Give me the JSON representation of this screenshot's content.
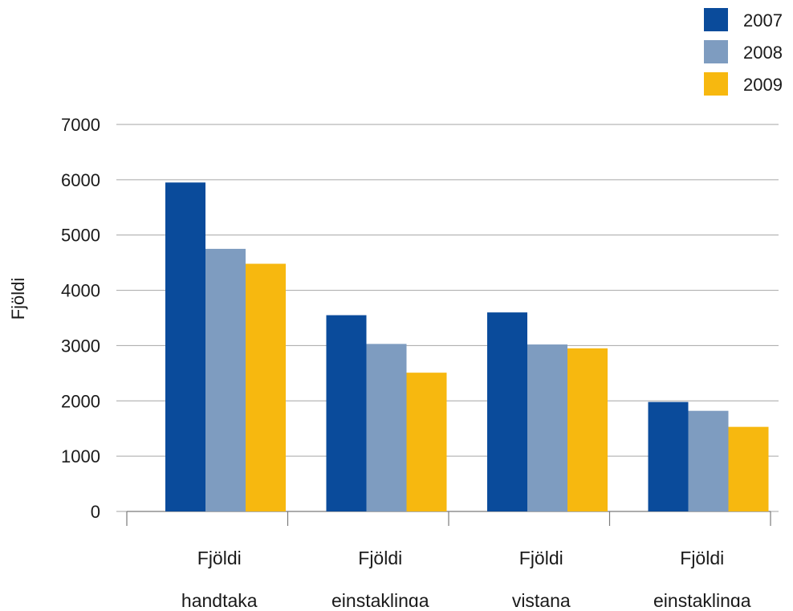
{
  "chart_data": {
    "type": "bar",
    "title": "",
    "xlabel": "",
    "ylabel": "Fjöldi",
    "ylim": [
      0,
      7000
    ],
    "yticks": [
      0,
      1000,
      2000,
      3000,
      4000,
      5000,
      6000,
      7000
    ],
    "grid": true,
    "legend": "top-right",
    "categories": [
      [
        "Fjöldi",
        "handtaka"
      ],
      [
        "Fjöldi",
        "einstaklinga"
      ],
      [
        "Fjöldi",
        "vistana"
      ],
      [
        "Fjöldi",
        "einstaklinga"
      ]
    ],
    "series": [
      {
        "name": "2007",
        "color": "#0a4b9b",
        "values": [
          5950,
          3550,
          3600,
          1980
        ]
      },
      {
        "name": "2008",
        "color": "#7e9cc0",
        "values": [
          4750,
          3030,
          3020,
          1820
        ]
      },
      {
        "name": "2009",
        "color": "#f7b80f",
        "values": [
          4480,
          2510,
          2950,
          1530
        ]
      }
    ]
  }
}
